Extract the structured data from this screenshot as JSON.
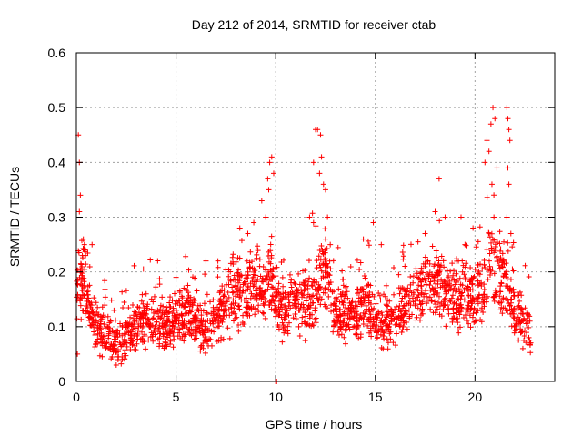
{
  "chart_data": {
    "type": "scatter",
    "title": "Day 212 of 2014, SRMTID for receiver ctab",
    "xlabel": "GPS time / hours",
    "ylabel": "SRMTID / TECUs",
    "xlim": [
      0,
      24
    ],
    "ylim": [
      0,
      0.6
    ],
    "xticks": [
      0,
      5,
      10,
      15,
      20
    ],
    "xtick_labels": [
      "0",
      "5",
      "10",
      "15",
      "20"
    ],
    "yticks": [
      0,
      0.1,
      0.2,
      0.3,
      0.4,
      0.5,
      0.6
    ],
    "ytick_labels": [
      "0",
      "0.1",
      "0.2",
      "0.3",
      "0.4",
      "0.5",
      "0.6"
    ],
    "grid": true,
    "marker": "+",
    "color": "#ff0000",
    "series": [
      {
        "name": "SRMTID",
        "envelope": {
          "x": [
            0,
            0.1,
            0.2,
            0.4,
            0.6,
            0.8,
            1.0,
            1.5,
            2.0,
            2.5,
            3.0,
            3.5,
            4.0,
            4.5,
            5.0,
            5.5,
            6.0,
            6.5,
            7.0,
            7.5,
            8.0,
            8.5,
            9.0,
            9.5,
            9.8,
            10.0,
            10.5,
            11.0,
            11.5,
            12.0,
            12.3,
            12.6,
            13.0,
            13.5,
            14.0,
            14.5,
            15.0,
            15.5,
            16.0,
            16.5,
            17.0,
            17.5,
            18.0,
            18.5,
            19.0,
            19.5,
            20.0,
            20.5,
            20.9,
            21.2,
            21.5,
            21.7,
            22.0,
            22.5,
            22.8
          ],
          "y": [
            0.15,
            0.2,
            0.16,
            0.2,
            0.15,
            0.12,
            0.1,
            0.09,
            0.07,
            0.08,
            0.1,
            0.11,
            0.1,
            0.1,
            0.12,
            0.13,
            0.11,
            0.09,
            0.12,
            0.14,
            0.17,
            0.16,
            0.18,
            0.17,
            0.2,
            0.13,
            0.13,
            0.15,
            0.14,
            0.16,
            0.2,
            0.17,
            0.13,
            0.12,
            0.12,
            0.15,
            0.12,
            0.11,
            0.11,
            0.13,
            0.16,
            0.18,
            0.19,
            0.17,
            0.15,
            0.16,
            0.15,
            0.18,
            0.22,
            0.2,
            0.19,
            0.15,
            0.12,
            0.11,
            0.09
          ]
        },
        "notable_points": [
          {
            "x": 0.05,
            "y": 0.05
          },
          {
            "x": 0.1,
            "y": 0.45
          },
          {
            "x": 0.15,
            "y": 0.4
          },
          {
            "x": 0.2,
            "y": 0.34
          },
          {
            "x": 0.15,
            "y": 0.31
          },
          {
            "x": 0.35,
            "y": 0.26
          },
          {
            "x": 0.4,
            "y": 0.25
          },
          {
            "x": 0.45,
            "y": 0.24
          },
          {
            "x": 0.3,
            "y": 0.23
          },
          {
            "x": 2.0,
            "y": 0.03
          },
          {
            "x": 2.3,
            "y": 0.04
          },
          {
            "x": 3.5,
            "y": 0.16
          },
          {
            "x": 5.0,
            "y": 0.19
          },
          {
            "x": 6.5,
            "y": 0.22
          },
          {
            "x": 7.1,
            "y": 0.22
          },
          {
            "x": 8.2,
            "y": 0.28
          },
          {
            "x": 8.6,
            "y": 0.27
          },
          {
            "x": 8.9,
            "y": 0.29
          },
          {
            "x": 9.3,
            "y": 0.33
          },
          {
            "x": 9.6,
            "y": 0.37
          },
          {
            "x": 9.7,
            "y": 0.4
          },
          {
            "x": 9.8,
            "y": 0.41
          },
          {
            "x": 9.9,
            "y": 0.38
          },
          {
            "x": 9.65,
            "y": 0.35
          },
          {
            "x": 9.5,
            "y": 0.3
          },
          {
            "x": 10.0,
            "y": 0.0
          },
          {
            "x": 10.05,
            "y": 0.0
          },
          {
            "x": 11.7,
            "y": 0.3
          },
          {
            "x": 11.9,
            "y": 0.4
          },
          {
            "x": 12.0,
            "y": 0.46
          },
          {
            "x": 12.1,
            "y": 0.46
          },
          {
            "x": 12.25,
            "y": 0.45
          },
          {
            "x": 12.3,
            "y": 0.41
          },
          {
            "x": 12.4,
            "y": 0.36
          },
          {
            "x": 12.5,
            "y": 0.35
          },
          {
            "x": 12.2,
            "y": 0.38
          },
          {
            "x": 12.6,
            "y": 0.3
          },
          {
            "x": 12.5,
            "y": 0.26
          },
          {
            "x": 11.9,
            "y": 0.29
          },
          {
            "x": 14.4,
            "y": 0.26
          },
          {
            "x": 14.9,
            "y": 0.29
          },
          {
            "x": 15.3,
            "y": 0.25
          },
          {
            "x": 17.5,
            "y": 0.27
          },
          {
            "x": 18.0,
            "y": 0.31
          },
          {
            "x": 18.2,
            "y": 0.37
          },
          {
            "x": 18.5,
            "y": 0.3
          },
          {
            "x": 19.3,
            "y": 0.3
          },
          {
            "x": 19.5,
            "y": 0.25
          },
          {
            "x": 19.9,
            "y": 0.28
          },
          {
            "x": 20.5,
            "y": 0.4
          },
          {
            "x": 20.6,
            "y": 0.44
          },
          {
            "x": 20.7,
            "y": 0.42
          },
          {
            "x": 20.8,
            "y": 0.47
          },
          {
            "x": 20.9,
            "y": 0.5
          },
          {
            "x": 21.0,
            "y": 0.48
          },
          {
            "x": 20.85,
            "y": 0.36
          },
          {
            "x": 21.1,
            "y": 0.39
          },
          {
            "x": 20.95,
            "y": 0.3
          },
          {
            "x": 21.6,
            "y": 0.5
          },
          {
            "x": 21.65,
            "y": 0.48
          },
          {
            "x": 21.7,
            "y": 0.46
          },
          {
            "x": 21.75,
            "y": 0.44
          },
          {
            "x": 21.65,
            "y": 0.39
          },
          {
            "x": 21.7,
            "y": 0.36
          },
          {
            "x": 21.6,
            "y": 0.3
          },
          {
            "x": 21.8,
            "y": 0.27
          },
          {
            "x": 22.1,
            "y": 0.13
          },
          {
            "x": 22.4,
            "y": 0.06
          },
          {
            "x": 22.7,
            "y": 0.08
          }
        ],
        "approx_point_count": 2200
      }
    ]
  }
}
